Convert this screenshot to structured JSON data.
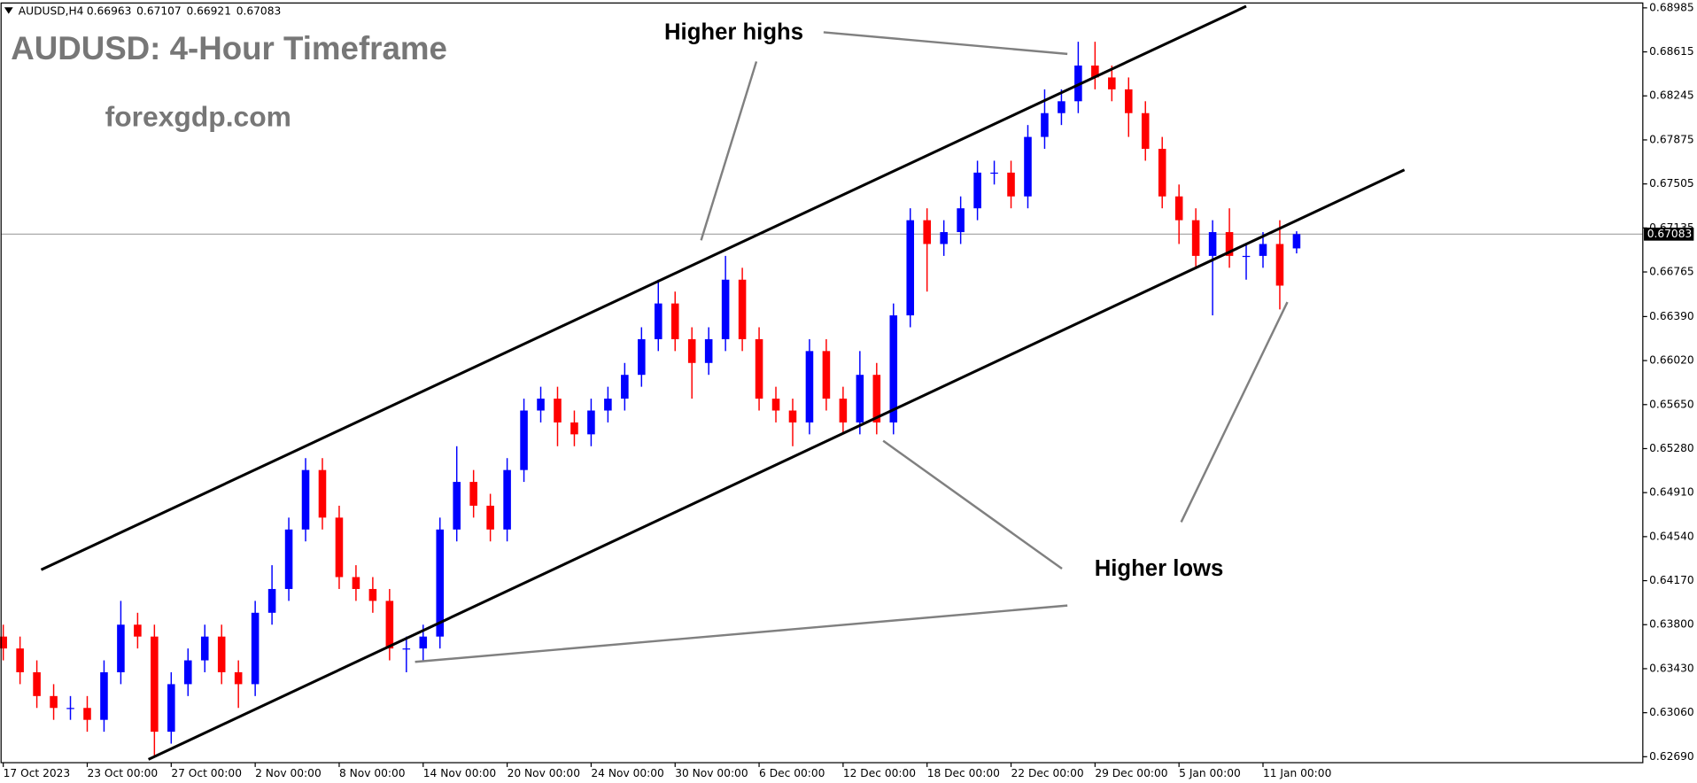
{
  "chart_data": {
    "type": "candlestick",
    "title": "AUDUSD: 4-Hour Timeframe",
    "subtitle": "forexgdp.com",
    "symbol": "AUDUSD,H4",
    "header_ohlc": [
      0.66963,
      0.67107,
      0.66921,
      0.67083
    ],
    "last_price": 0.67083,
    "annotations": [
      "Higher highs",
      "Higher lows"
    ],
    "up_color": "#0000ff",
    "down_color": "#ff0000",
    "categories": [
      "17 Oct 2023",
      null,
      null,
      null,
      null,
      "23 Oct 00:00",
      null,
      null,
      null,
      null,
      "27 Oct 00:00",
      null,
      null,
      null,
      null,
      "2 Nov 00:00",
      null,
      null,
      null,
      null,
      "8 Nov 00:00",
      null,
      null,
      null,
      null,
      "14 Nov 00:00",
      null,
      null,
      null,
      null,
      "20 Nov 00:00",
      null,
      null,
      null,
      null,
      "24 Nov 00:00",
      null,
      null,
      null,
      null,
      "30 Nov 00:00",
      null,
      null,
      null,
      null,
      "6 Dec 00:00",
      null,
      null,
      null,
      null,
      "12 Dec 00:00",
      null,
      null,
      null,
      null,
      "18 Dec 00:00",
      null,
      null,
      null,
      null,
      "22 Dec 00:00",
      null,
      null,
      null,
      null,
      "29 Dec 00:00",
      null,
      null,
      null,
      null,
      "5 Jan 00:00",
      null,
      null,
      null,
      null,
      "11 Jan 00:00",
      null,
      null
    ],
    "open": [
      0.637,
      0.636,
      0.634,
      0.632,
      0.631,
      0.631,
      0.63,
      0.634,
      0.638,
      0.637,
      0.629,
      0.633,
      0.635,
      0.637,
      0.634,
      0.633,
      0.639,
      0.641,
      0.646,
      0.651,
      0.647,
      0.642,
      0.641,
      0.64,
      0.636,
      0.636,
      0.637,
      0.646,
      0.65,
      0.648,
      0.646,
      0.651,
      0.656,
      0.657,
      0.655,
      0.654,
      0.656,
      0.657,
      0.659,
      0.662,
      0.665,
      0.662,
      0.66,
      0.662,
      0.667,
      0.662,
      0.657,
      0.656,
      0.655,
      0.661,
      0.657,
      0.655,
      0.659,
      0.655,
      0.664,
      0.672,
      0.67,
      0.671,
      0.673,
      0.676,
      0.676,
      0.674,
      0.679,
      0.681,
      0.682,
      0.685,
      0.684,
      0.683,
      0.681,
      0.678,
      0.674,
      0.672,
      0.669,
      0.671,
      0.669,
      0.669,
      0.67,
      0.66963
    ],
    "high": [
      0.638,
      0.637,
      0.635,
      0.633,
      0.632,
      0.632,
      0.635,
      0.64,
      0.639,
      0.638,
      0.634,
      0.636,
      0.638,
      0.638,
      0.635,
      0.64,
      0.643,
      0.647,
      0.652,
      0.652,
      0.648,
      0.643,
      0.642,
      0.641,
      0.637,
      0.638,
      0.647,
      0.653,
      0.651,
      0.649,
      0.652,
      0.657,
      0.658,
      0.658,
      0.656,
      0.657,
      0.658,
      0.66,
      0.663,
      0.667,
      0.666,
      0.663,
      0.663,
      0.669,
      0.668,
      0.663,
      0.658,
      0.657,
      0.662,
      0.662,
      0.658,
      0.661,
      0.66,
      0.665,
      0.673,
      0.673,
      0.672,
      0.674,
      0.677,
      0.677,
      0.677,
      0.68,
      0.683,
      0.683,
      0.687,
      0.687,
      0.685,
      0.684,
      0.682,
      0.679,
      0.675,
      0.673,
      0.672,
      0.673,
      0.67,
      0.671,
      0.672,
      0.67107
    ],
    "low": [
      0.635,
      0.633,
      0.631,
      0.63,
      0.63,
      0.629,
      0.629,
      0.633,
      0.636,
      0.627,
      0.628,
      0.632,
      0.634,
      0.633,
      0.631,
      0.632,
      0.638,
      0.64,
      0.645,
      0.646,
      0.641,
      0.64,
      0.639,
      0.635,
      0.634,
      0.635,
      0.636,
      0.645,
      0.647,
      0.645,
      0.645,
      0.65,
      0.655,
      0.653,
      0.653,
      0.653,
      0.655,
      0.656,
      0.658,
      0.661,
      0.661,
      0.657,
      0.659,
      0.661,
      0.661,
      0.656,
      0.655,
      0.653,
      0.654,
      0.656,
      0.654,
      0.654,
      0.654,
      0.654,
      0.663,
      0.666,
      0.669,
      0.67,
      0.672,
      0.675,
      0.673,
      0.673,
      0.678,
      0.68,
      0.681,
      0.683,
      0.682,
      0.679,
      0.677,
      0.673,
      0.67,
      0.668,
      0.664,
      0.668,
      0.667,
      0.668,
      0.6645,
      0.66921
    ],
    "close": [
      0.636,
      0.634,
      0.632,
      0.631,
      0.631,
      0.63,
      0.634,
      0.638,
      0.637,
      0.629,
      0.633,
      0.635,
      0.637,
      0.634,
      0.633,
      0.639,
      0.641,
      0.646,
      0.651,
      0.647,
      0.642,
      0.641,
      0.64,
      0.636,
      0.636,
      0.637,
      0.646,
      0.65,
      0.648,
      0.646,
      0.651,
      0.656,
      0.657,
      0.655,
      0.654,
      0.656,
      0.657,
      0.659,
      0.662,
      0.665,
      0.662,
      0.66,
      0.662,
      0.667,
      0.662,
      0.657,
      0.656,
      0.655,
      0.661,
      0.657,
      0.655,
      0.659,
      0.655,
      0.664,
      0.672,
      0.67,
      0.671,
      0.673,
      0.676,
      0.676,
      0.674,
      0.679,
      0.681,
      0.682,
      0.685,
      0.684,
      0.683,
      0.681,
      0.678,
      0.674,
      0.672,
      0.669,
      0.671,
      0.669,
      0.669,
      0.67,
      0.6665,
      0.67083
    ],
    "ylim": [
      0.6264,
      0.69035
    ],
    "yticks": [
      0.68985,
      0.68615,
      0.68245,
      0.67875,
      0.67505,
      0.67135,
      0.66765,
      {
        "value": 0.6639,
        "label": "0.66390"
      },
      {
        "value": 0.6602,
        "label": "0.66020"
      },
      {
        "value": 0.6565,
        "label": "0.65650"
      },
      {
        "value": 0.6528,
        "label": "0.65280"
      },
      {
        "value": 0.6491,
        "label": "0.64910"
      },
      {
        "value": 0.6454,
        "label": "0.64540"
      },
      {
        "value": 0.6417,
        "label": "0.64170"
      },
      {
        "value": 0.638,
        "label": "0.63800"
      },
      {
        "value": 0.6343,
        "label": "0.63430"
      },
      {
        "value": 0.6306,
        "label": "0.63060"
      },
      {
        "value": 0.6269,
        "label": "0.62690"
      }
    ]
  }
}
